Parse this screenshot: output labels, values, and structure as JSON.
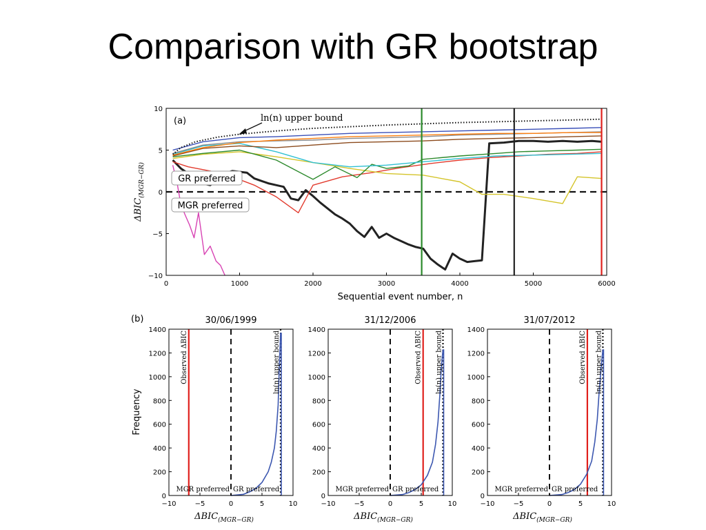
{
  "slide": {
    "title": "Comparison with GR bootstrap"
  },
  "chart_data": [
    {
      "type": "line",
      "panel": "(a)",
      "xlabel": "Sequential event number, n",
      "ylabel": "ΔBIC(MGR−GR)",
      "xlim": [
        0,
        6000
      ],
      "ylim": [
        -10,
        10
      ],
      "xticks": [
        0,
        1000,
        2000,
        3000,
        4000,
        5000,
        6000
      ],
      "yticks": [
        10,
        5,
        0,
        -5,
        -10
      ],
      "annotations": {
        "upper_bound": "ln(n) upper bound",
        "gr_preferred": "GR preferred",
        "mgr_preferred": "MGR preferred"
      },
      "reference_lines": {
        "y_dashed": 0,
        "vertical": [
          {
            "x": 3480,
            "color": "#2a8a2a"
          },
          {
            "x": 4740,
            "color": "#222222"
          },
          {
            "x": 5930,
            "color": "#e0201c"
          }
        ]
      },
      "series": [
        {
          "color": "#222222",
          "x": [
            90,
            200,
            300,
            400,
            500,
            600,
            700,
            800,
            900,
            1000,
            1100,
            1200,
            1300,
            1400,
            1500,
            1600,
            1700,
            1800,
            1900,
            2000,
            2100,
            2200,
            2300,
            2400,
            2500,
            2600,
            2700,
            2800,
            2900,
            3000,
            3100,
            3200,
            3300,
            3400,
            3500,
            3600,
            3700,
            3800,
            3900,
            4000,
            4100,
            4200,
            4300,
            4400,
            4600,
            4800,
            5000,
            5200,
            5400,
            5600,
            5800,
            5930
          ],
          "y": [
            3.8,
            2.8,
            2.2,
            1.6,
            1.0,
            0.8,
            1.5,
            2.2,
            2.5,
            2.4,
            2.3,
            1.6,
            1.3,
            1.0,
            0.8,
            0.6,
            -0.8,
            -1.0,
            0.2,
            -0.5,
            -1.3,
            -2.0,
            -2.7,
            -3.2,
            -3.8,
            -4.7,
            -5.4,
            -4.2,
            -5.5,
            -5.0,
            -5.5,
            -5.9,
            -6.3,
            -6.6,
            -6.8,
            -8.0,
            -8.7,
            -9.3,
            -7.4,
            -8.0,
            -8.4,
            -8.3,
            -8.2,
            5.8,
            5.9,
            6.1,
            6.1,
            6.0,
            6.1,
            6.0,
            6.1,
            6.0
          ]
        },
        {
          "color": "#e23b2e",
          "x": [
            90,
            300,
            600,
            900,
            1200,
            1500,
            1800,
            2000,
            2400,
            2800,
            3200,
            3600,
            4000,
            4400,
            4800,
            5200,
            5600,
            5930
          ],
          "y": [
            3.6,
            3.0,
            2.5,
            1.8,
            0.8,
            -0.6,
            -2.5,
            0.8,
            1.8,
            2.3,
            2.9,
            3.4,
            3.8,
            4.1,
            4.3,
            4.5,
            4.6,
            4.8
          ]
        },
        {
          "color": "#d4c42a",
          "x": [
            90,
            500,
            1000,
            1500,
            2000,
            2500,
            3000,
            3500,
            4000,
            4300,
            4600,
            5000,
            5400,
            5600,
            5930
          ],
          "y": [
            4.0,
            4.5,
            4.8,
            4.2,
            3.5,
            2.8,
            2.2,
            2.0,
            1.2,
            -0.3,
            -0.3,
            -0.8,
            -1.4,
            1.8,
            1.6
          ]
        },
        {
          "color": "#2d8a2d",
          "x": [
            90,
            500,
            1000,
            1500,
            2000,
            2300,
            2600,
            2800,
            3000,
            3300,
            3500,
            4000,
            4500,
            4800,
            5200,
            5600,
            5930
          ],
          "y": [
            4.2,
            4.6,
            5.0,
            3.8,
            1.5,
            3.0,
            1.7,
            3.3,
            2.8,
            3.1,
            3.9,
            4.3,
            4.6,
            4.8,
            4.9,
            5.0,
            5.1
          ]
        },
        {
          "color": "#d742b3",
          "x": [
            90,
            150,
            200,
            260,
            320,
            380,
            440,
            520,
            600,
            680,
            740,
            800
          ],
          "y": [
            3.2,
            1.0,
            -1.5,
            -2.8,
            -4.0,
            -5.5,
            -2.5,
            -7.5,
            -6.5,
            -8.3,
            -8.8,
            -10.0
          ]
        },
        {
          "color": "#30c0d2",
          "x": [
            90,
            500,
            1000,
            1500,
            2000,
            2500,
            3000,
            3500,
            4000,
            4500,
            5000,
            5500,
            5930
          ],
          "y": [
            4.5,
            5.5,
            5.8,
            4.8,
            3.5,
            3.0,
            3.2,
            3.6,
            4.0,
            4.3,
            4.4,
            4.5,
            4.6
          ]
        },
        {
          "color": "#3a4fb8",
          "x": [
            90,
            500,
            1000,
            1500,
            2000,
            2500,
            3000,
            3500,
            4000,
            4500,
            5000,
            5500,
            5930
          ],
          "y": [
            5.0,
            6.0,
            6.5,
            6.6,
            6.8,
            7.0,
            7.1,
            7.2,
            7.3,
            7.4,
            7.5,
            7.6,
            7.7
          ]
        },
        {
          "color": "#8c8c8c",
          "x": [
            90,
            500,
            1000,
            1500,
            2000,
            2500,
            3000,
            3500,
            4000,
            4500,
            5000,
            5500,
            5930
          ],
          "y": [
            4.6,
            5.6,
            6.0,
            6.1,
            6.2,
            6.4,
            6.5,
            6.6,
            6.8,
            6.9,
            7.0,
            7.1,
            7.2
          ]
        },
        {
          "color": "#8b4a1c",
          "x": [
            90,
            500,
            1000,
            1500,
            2000,
            2500,
            3000,
            3500,
            4000,
            4500,
            5000,
            5500,
            5930
          ],
          "y": [
            4.3,
            5.2,
            5.5,
            5.3,
            5.6,
            5.9,
            6.0,
            6.1,
            6.3,
            6.4,
            6.5,
            6.6,
            6.7
          ]
        },
        {
          "color": "#ff7f0e",
          "x": [
            90,
            500,
            1000,
            1500,
            2000,
            2500,
            3000,
            3500,
            4000,
            4500,
            5000,
            5500,
            5930
          ],
          "y": [
            4.4,
            5.3,
            5.9,
            6.2,
            6.4,
            6.6,
            6.7,
            6.8,
            6.9,
            7.0,
            7.0,
            7.1,
            7.1
          ]
        }
      ],
      "upper_bound": {
        "color": "#111111",
        "n": [
          90,
          200,
          400,
          700,
          1000,
          1500,
          2000,
          2500,
          3000,
          3500,
          4000,
          4500,
          5000,
          5500,
          5930
        ],
        "y": [
          4.5,
          5.3,
          6.0,
          6.55,
          6.9,
          7.3,
          7.6,
          7.8,
          8.0,
          8.15,
          8.3,
          8.4,
          8.5,
          8.6,
          8.7
        ]
      }
    },
    {
      "type": "line",
      "panel": "(b)",
      "title": "30/06/1999",
      "xlabel": "ΔBIC(MGR−GR)",
      "ylabel": "Frequency",
      "xlim": [
        -10,
        10
      ],
      "ylim": [
        0,
        1400
      ],
      "xticks": [
        -10,
        -5,
        0,
        5,
        10
      ],
      "yticks": [
        0,
        200,
        400,
        600,
        800,
        1000,
        1200,
        1400
      ],
      "observed_dbic": -6.8,
      "upper_bound_x": 8.0,
      "labels": {
        "observed": "Observed ΔBIC",
        "upper_bound": "ln(n) upper bound",
        "mgr_preferred": "MGR preferred",
        "gr_preferred": "GR preferred"
      },
      "x": [
        0,
        2,
        3,
        4,
        5,
        6,
        6.5,
        7,
        7.3,
        7.6,
        7.8,
        8.0
      ],
      "y": [
        0,
        10,
        30,
        60,
        110,
        200,
        280,
        400,
        540,
        760,
        1100,
        1370
      ]
    },
    {
      "type": "line",
      "title": "31/12/2006",
      "xlabel": "ΔBIC(MGR−GR)",
      "xlim": [
        -10,
        10
      ],
      "ylim": [
        0,
        1400
      ],
      "xticks": [
        -10,
        -5,
        0,
        5,
        10
      ],
      "yticks": [
        0,
        200,
        400,
        600,
        800,
        1000,
        1200,
        1400
      ],
      "observed_dbic": 5.3,
      "upper_bound_x": 8.5,
      "labels": {
        "observed": "Observed ΔBIC",
        "upper_bound": "ln(n) upper bound",
        "mgr_preferred": "MGR preferred",
        "gr_preferred": "GR preferred"
      },
      "x": [
        0,
        2,
        3,
        4,
        5,
        6,
        6.8,
        7.3,
        7.7,
        8.0,
        8.2,
        8.5
      ],
      "y": [
        0,
        8,
        25,
        50,
        90,
        170,
        280,
        430,
        620,
        850,
        1050,
        1230
      ]
    },
    {
      "type": "line",
      "title": "31/07/2012",
      "xlabel": "ΔBIC(MGR−GR)",
      "xlim": [
        -10,
        10
      ],
      "ylim": [
        0,
        1400
      ],
      "xticks": [
        -10,
        -5,
        0,
        5,
        10
      ],
      "yticks": [
        0,
        200,
        400,
        600,
        800,
        1000,
        1200,
        1400
      ],
      "observed_dbic": 6.1,
      "upper_bound_x": 8.6,
      "labels": {
        "observed": "Observed ΔBIC",
        "upper_bound": "ln(n) upper bound",
        "mgr_preferred": "MGR preferred",
        "gr_preferred": "GR preferred"
      },
      "x": [
        0,
        2,
        3,
        4,
        5,
        6,
        6.8,
        7.3,
        7.7,
        8.0,
        8.3,
        8.6
      ],
      "y": [
        0,
        8,
        25,
        50,
        95,
        180,
        290,
        450,
        640,
        870,
        1060,
        1230
      ]
    }
  ]
}
